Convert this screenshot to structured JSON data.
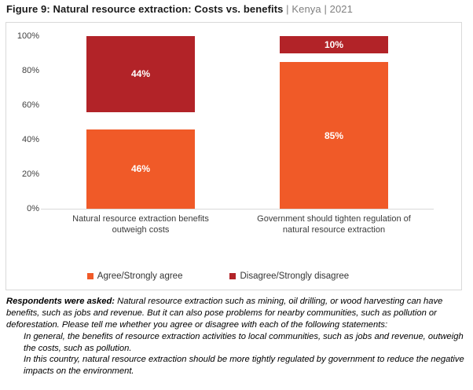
{
  "header": {
    "title_bold": "Figure 9: Natural resource extraction: Costs vs. benefits",
    "title_suffix": " | Kenya | 2021"
  },
  "chart_data": {
    "type": "bar",
    "stacked": true,
    "orientation": "vertical",
    "categories": [
      "Natural resource extraction benefits outweigh costs",
      "Government should tighten regulation of natural resource extraction"
    ],
    "series": [
      {
        "name": "Agree/Strongly agree",
        "color": "#F05A28",
        "anchor": "bottom",
        "values": [
          46,
          85
        ]
      },
      {
        "name": "Disagree/Strongly disagree",
        "color": "#B22328",
        "anchor": "top",
        "values": [
          44,
          10
        ]
      }
    ],
    "data_label_suffix": "%",
    "ylim": [
      0,
      100
    ],
    "yticks": [
      0,
      20,
      40,
      60,
      80,
      100
    ],
    "ytick_labels": [
      "0%",
      "20%",
      "40%",
      "60%",
      "80%",
      "100%"
    ],
    "grid": false,
    "legend_position": "bottom"
  },
  "footnote": {
    "intro_bold": "Respondents were asked:",
    "intro_rest": " Natural resource extraction such as mining, oil drilling, or wood harvesting can have benefits, such as jobs and revenue. But it can also pose problems for nearby communities, such as pollution or deforestation. Please tell me whether you agree or disagree with each of the following statements:",
    "statements": [
      "In general, the benefits of resource extraction activities to local communities, such as jobs and revenue, outweigh the costs, such as pollution.",
      "In this country, natural resource extraction should be more tightly regulated by government to reduce the negative impacts on the environment."
    ]
  },
  "colors": {
    "agree": "#F05A28",
    "disagree": "#B22328",
    "panel_border": "#d9d9d9",
    "axis_text": "#404040",
    "title_suffix_gray": "#808080"
  }
}
